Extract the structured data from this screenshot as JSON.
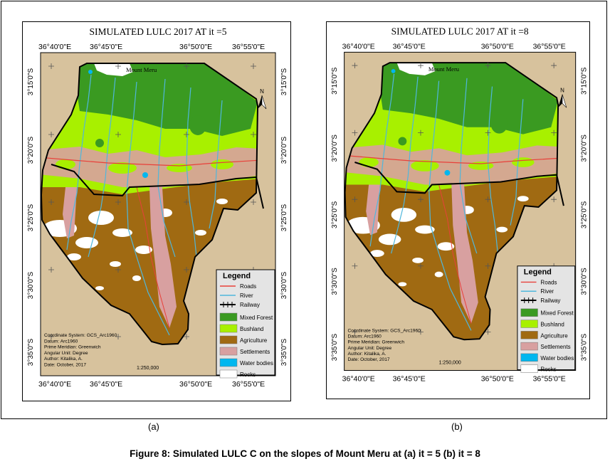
{
  "maps": [
    {
      "title": "SIMULATED LULC 2017 AT  it =5",
      "top_labels": [
        "36°40'0\"E",
        "36°45'0\"E",
        "36°50'0\"E",
        "36°55'0\"E"
      ],
      "bottom_labels": [
        "36°40'0\"E",
        "36°45'0\"E",
        "36°50'0\"E",
        "36°55'0\"E"
      ],
      "lat_labels": [
        "3°15'0\"S",
        "3°20'0\"S",
        "3°25'0\"S",
        "3°30'0\"S",
        "3°35'0\"S"
      ],
      "place_label": "Mount Meru",
      "north_label": "N",
      "legend_title": "Legend",
      "legend_items": [
        {
          "label": "Roads",
          "kind": "line",
          "color": "#e8403a"
        },
        {
          "label": "River",
          "kind": "line",
          "color": "#4fb7dc"
        },
        {
          "label": "Railway",
          "kind": "rail",
          "color": "#000000"
        },
        {
          "label": "Mixed Forest",
          "kind": "box",
          "color": "#3a9a21"
        },
        {
          "label": "Bushland",
          "kind": "box",
          "color": "#a8f000"
        },
        {
          "label": "Agriculture",
          "kind": "box",
          "color": "#a06a12"
        },
        {
          "label": "Settlements",
          "kind": "box",
          "color": "#d8a0a0"
        },
        {
          "label": "Water bodies",
          "kind": "box",
          "color": "#00b7ef"
        },
        {
          "label": "Rocks",
          "kind": "box",
          "color": "#ffffff"
        }
      ],
      "info": [
        "Coordinate System: GCS_Arc1960",
        "Datum: Arc1960",
        "Prime Meridian: Greenwich",
        "Angular Unit: Degree",
        "Author: Kitalika, A.",
        "Date: October, 2017"
      ],
      "scale": "1:250,000"
    },
    {
      "title": "SIMULATED LULC 2017 AT  it =8",
      "top_labels": [
        "36°40'0\"E",
        "36°45'0\"E",
        "36°50'0\"E",
        "36°55'0\"E"
      ],
      "bottom_labels": [
        "36°40'0\"E",
        "36°45'0\"E",
        "36°50'0\"E",
        "36°55'0\"E"
      ],
      "lat_labels": [
        "3°15'0\"S",
        "3°20'0\"S",
        "3°25'0\"S",
        "3°30'0\"S",
        "3°35'0\"S"
      ],
      "place_label": "Mount Meru",
      "north_label": "N",
      "legend_title": "Legend",
      "legend_items": [
        {
          "label": "Roads",
          "kind": "line",
          "color": "#e8403a"
        },
        {
          "label": "River",
          "kind": "line",
          "color": "#4fb7dc"
        },
        {
          "label": "Railway",
          "kind": "rail",
          "color": "#000000"
        },
        {
          "label": "Mixed Forest",
          "kind": "box",
          "color": "#3a9a21"
        },
        {
          "label": "Bushland",
          "kind": "box",
          "color": "#a8f000"
        },
        {
          "label": "Agriculture",
          "kind": "box",
          "color": "#a06a12"
        },
        {
          "label": "Settlements",
          "kind": "box",
          "color": "#d8a0a0"
        },
        {
          "label": "Water bodies",
          "kind": "box",
          "color": "#00b7ef"
        },
        {
          "label": "Rocks",
          "kind": "box",
          "color": "#ffffff"
        }
      ],
      "info": [
        "Coordinate System: GCS_Arc1960",
        "Datum: Arc1960",
        "Prime Meridian: Greenwich",
        "Angular Unit: Degree",
        "Author: Kitalika, A.",
        "Date: October, 2017"
      ],
      "scale": "1:250,000"
    }
  ],
  "sub_captions": [
    "(a)",
    "(b)"
  ],
  "caption": "Figure 8: Simulated LULC C on the slopes of Mount Meru at (a) it = 5 (b) it = 8",
  "colors": {
    "background": "#d7c29d",
    "mixed_forest": "#3a9a21",
    "bushland": "#a8f000",
    "agriculture": "#a06a12",
    "settlements": "#d8a0a0",
    "water": "#00b7ef",
    "rocks": "#ffffff",
    "roads": "#e8403a",
    "river": "#4fb7dc",
    "railway": "#000000",
    "legend_bg": "#e4e4e4"
  }
}
